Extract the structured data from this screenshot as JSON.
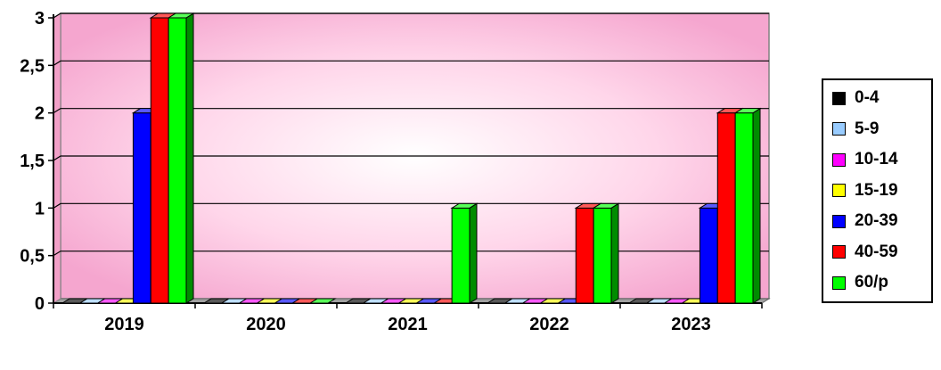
{
  "chart_data": {
    "type": "bar",
    "categories": [
      "2019",
      "2020",
      "2021",
      "2022",
      "2023"
    ],
    "series": [
      {
        "name": "0-4",
        "color": "#000000",
        "values": [
          0,
          0,
          0,
          0,
          0
        ]
      },
      {
        "name": "5-9",
        "color": "#99ccff",
        "values": [
          0,
          0,
          0,
          0,
          0
        ]
      },
      {
        "name": "10-14",
        "color": "#ff00ff",
        "values": [
          0,
          0,
          0,
          0,
          0
        ]
      },
      {
        "name": "15-19",
        "color": "#ffff00",
        "values": [
          0,
          0,
          0,
          0,
          0
        ]
      },
      {
        "name": "20-39",
        "color": "#0000ff",
        "values": [
          2,
          0,
          0,
          0,
          1
        ]
      },
      {
        "name": "40-59",
        "color": "#ff0000",
        "values": [
          3,
          0,
          0,
          1,
          2
        ]
      },
      {
        "name": "60/p",
        "color": "#00ff00",
        "values": [
          3,
          0,
          1,
          1,
          2
        ]
      }
    ],
    "yticks": [
      "0",
      "0,5",
      "1",
      "1,5",
      "2",
      "2,5",
      "3"
    ],
    "ylim": [
      0,
      3
    ],
    "title": "",
    "xlabel": "",
    "ylabel": "",
    "grid": true,
    "legend": "right",
    "plot_background": "#ff99cc"
  }
}
